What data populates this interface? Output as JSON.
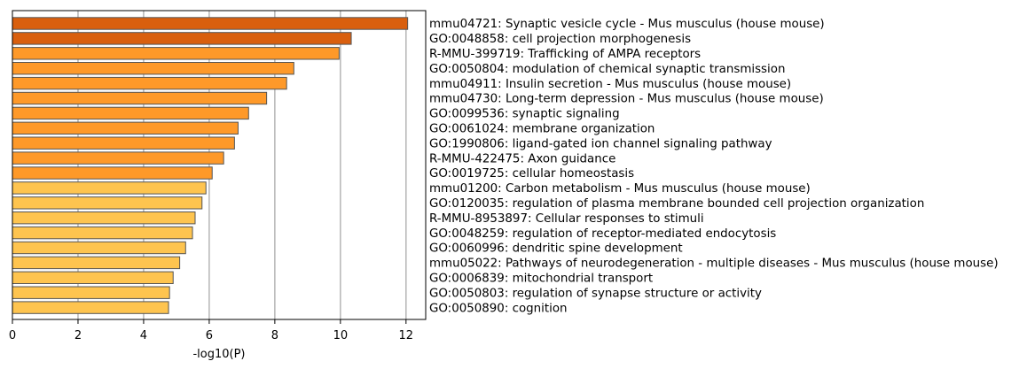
{
  "chart_data": {
    "type": "bar",
    "orientation": "horizontal",
    "title": "",
    "xlabel": "-log10(P)",
    "ylabel": "",
    "xlim": [
      0,
      12.6
    ],
    "xticks": [
      0,
      2,
      4,
      6,
      8,
      10,
      12
    ],
    "grid": "vertical lines at x ticks",
    "legend": "none",
    "categories": [
      "mmu04721: Synaptic vesicle cycle - Mus musculus (house mouse)",
      "GO:0048858: cell projection morphogenesis",
      "R-MMU-399719: Trafficking of AMPA receptors",
      "GO:0050804: modulation of chemical synaptic transmission",
      "mmu04911: Insulin secretion - Mus musculus (house mouse)",
      "mmu04730: Long-term depression - Mus musculus (house mouse)",
      "GO:0099536: synaptic signaling",
      "GO:0061024: membrane organization",
      "GO:1990806: ligand-gated ion channel signaling pathway",
      "R-MMU-422475: Axon guidance",
      "GO:0019725: cellular homeostasis",
      "mmu01200: Carbon metabolism - Mus musculus (house mouse)",
      "GO:0120035: regulation of plasma membrane bounded cell projection organization",
      "R-MMU-8953897: Cellular responses to stimuli",
      "GO:0048259: regulation of receptor-mediated endocytosis",
      "GO:0060996: dendritic spine development",
      "mmu05022: Pathways of neurodegeneration - multiple diseases - Mus musculus (house mouse)",
      "GO:0006839: mitochondrial transport",
      "GO:0050803: regulation of synapse structure or activity",
      "GO:0050890: cognition"
    ],
    "values": [
      12.05,
      10.33,
      9.96,
      8.58,
      8.36,
      7.75,
      7.2,
      6.88,
      6.77,
      6.44,
      6.09,
      5.9,
      5.78,
      5.57,
      5.49,
      5.28,
      5.1,
      4.9,
      4.79,
      4.76
    ],
    "colors": [
      "#d95f0e",
      "#d95f0e",
      "#fe9929",
      "#fe9929",
      "#fe9929",
      "#fe9929",
      "#fe9929",
      "#fe9929",
      "#fe9929",
      "#fe9929",
      "#fe9929",
      "#fec44f",
      "#fec44f",
      "#fec44f",
      "#fec44f",
      "#fec44f",
      "#fec44f",
      "#fec44f",
      "#fec44f",
      "#fec44f"
    ],
    "bar_edge_color": "#555555",
    "grid_color": "#b0b0b0"
  }
}
